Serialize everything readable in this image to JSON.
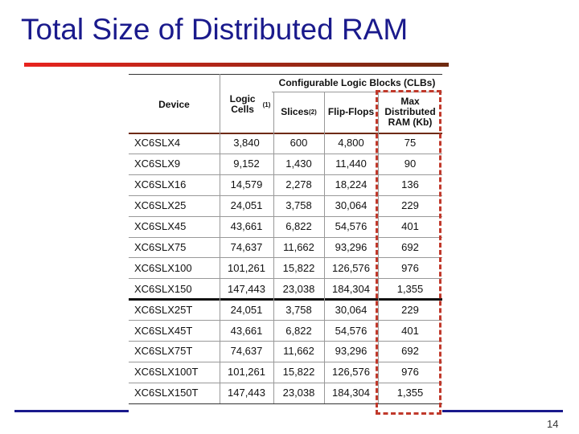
{
  "title": "Total Size of Distributed RAM",
  "table": {
    "group_header": "Configurable Logic Blocks (CLBs)",
    "columns": [
      {
        "label": "Device"
      },
      {
        "label": "Logic Cells",
        "note": "(1)"
      },
      {
        "label": "Slices",
        "note": "(2)"
      },
      {
        "label": "Flip-Flops"
      },
      {
        "label": "Max Distributed RAM (Kb)"
      }
    ],
    "rows": [
      [
        "XC6SLX4",
        "3,840",
        "600",
        "4,800",
        "75"
      ],
      [
        "XC6SLX9",
        "9,152",
        "1,430",
        "11,440",
        "90"
      ],
      [
        "XC6SLX16",
        "14,579",
        "2,278",
        "18,224",
        "136"
      ],
      [
        "XC6SLX25",
        "24,051",
        "3,758",
        "30,064",
        "229"
      ],
      [
        "XC6SLX45",
        "43,661",
        "6,822",
        "54,576",
        "401"
      ],
      [
        "XC6SLX75",
        "74,637",
        "11,662",
        "93,296",
        "692"
      ],
      [
        "XC6SLX100",
        "101,261",
        "15,822",
        "126,576",
        "976"
      ],
      [
        "XC6SLX150",
        "147,443",
        "23,038",
        "184,304",
        "1,355"
      ],
      [
        "XC6SLX25T",
        "24,051",
        "3,758",
        "30,064",
        "229"
      ],
      [
        "XC6SLX45T",
        "43,661",
        "6,822",
        "54,576",
        "401"
      ],
      [
        "XC6SLX75T",
        "74,637",
        "11,662",
        "93,296",
        "692"
      ],
      [
        "XC6SLX100T",
        "101,261",
        "15,822",
        "126,576",
        "976"
      ],
      [
        "XC6SLX150T",
        "147,443",
        "23,038",
        "184,304",
        "1,355"
      ]
    ]
  },
  "page_number": "14"
}
